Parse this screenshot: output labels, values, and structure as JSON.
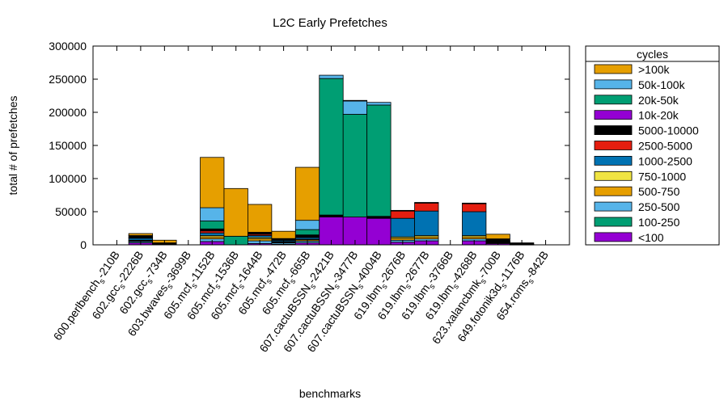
{
  "chart_data": {
    "type": "bar",
    "stacked": true,
    "title": "L2C Early Prefetches",
    "xlabel": "benchmarks",
    "ylabel": "total # of prefetches",
    "ylim": [
      0,
      300000
    ],
    "yticks": [
      "0",
      "50000",
      "100000",
      "150000",
      "200000",
      "250000",
      "300000"
    ],
    "grid": false,
    "legend_position": "right",
    "legend_title": "cycles",
    "categories": [
      "600.perlbench_s-210B",
      "602.gcc_s-2226B",
      "602.gcc_s-734B",
      "603.bwaves_s-3699B",
      "605.mcf_s-1152B",
      "605.mcf_s-1536B",
      "605.mcf_s-1644B",
      "605.mcf_s-472B",
      "605.mcf_s-665B",
      "607.cactuBSSN_s-2421B",
      "607.cactuBSSN_s-3477B",
      "607.cactuBSSN_s-4004B",
      "619.lbm_s-2676B",
      "619.lbm_s-2677B",
      "619.lbm_s-3766B",
      "619.lbm_s-4268B",
      "623.xalancbmk_s-700B",
      "649.fotonik3d_s-1176B",
      "654.roms_s-842B"
    ],
    "category_labels": [
      {
        "main": "600.perlbench",
        "sub": "s",
        "tail": "-210B"
      },
      {
        "main": "602.gcc",
        "sub": "s",
        "tail": "-2226B"
      },
      {
        "main": "602.gcc",
        "sub": "s",
        "tail": "-734B"
      },
      {
        "main": "603.bwaves",
        "sub": "s",
        "tail": "-3699B"
      },
      {
        "main": "605.mcf",
        "sub": "s",
        "tail": "-1152B"
      },
      {
        "main": "605.mcf",
        "sub": "s",
        "tail": "-1536B"
      },
      {
        "main": "605.mcf",
        "sub": "s",
        "tail": "-1644B"
      },
      {
        "main": "605.mcf",
        "sub": "s",
        "tail": "-472B"
      },
      {
        "main": "605.mcf",
        "sub": "s",
        "tail": "-665B"
      },
      {
        "main": "607.cactuBSSN",
        "sub": "s",
        "tail": "-2421B"
      },
      {
        "main": "607.cactuBSSN",
        "sub": "s",
        "tail": "-3477B"
      },
      {
        "main": "607.cactuBSSN",
        "sub": "s",
        "tail": "-4004B"
      },
      {
        "main": "619.lbm",
        "sub": "s",
        "tail": "-2676B"
      },
      {
        "main": "619.lbm",
        "sub": "s",
        "tail": "-2677B"
      },
      {
        "main": "619.lbm",
        "sub": "s",
        "tail": "-3766B"
      },
      {
        "main": "619.lbm",
        "sub": "s",
        "tail": "-4268B"
      },
      {
        "main": "623.xalancbmk",
        "sub": "s",
        "tail": "-700B"
      },
      {
        "main": "649.fotonik3d",
        "sub": "s",
        "tail": "-1176B"
      },
      {
        "main": "654.roms",
        "sub": "s",
        "tail": "-842B"
      }
    ],
    "series": [
      {
        "name": "<100",
        "color": "#9400d3",
        "values": [
          0,
          3000,
          1000,
          0,
          5000,
          0,
          2000,
          1000,
          3000,
          42000,
          42000,
          40000,
          4000,
          6000,
          0,
          6000,
          2000,
          500,
          0
        ]
      },
      {
        "name": "100-250",
        "color": "#009e73",
        "values": [
          0,
          0,
          0,
          0,
          0,
          13000,
          0,
          0,
          0,
          0,
          0,
          0,
          0,
          0,
          0,
          0,
          0,
          0,
          0
        ]
      },
      {
        "name": "250-500",
        "color": "#56b4e9",
        "values": [
          0,
          2000,
          500,
          0,
          4000,
          0,
          4000,
          2000,
          2500,
          0,
          0,
          0,
          3000,
          3000,
          0,
          3000,
          1000,
          500,
          0
        ]
      },
      {
        "name": "500-750",
        "color": "#e69f00",
        "values": [
          0,
          1000,
          500,
          0,
          3000,
          0,
          3000,
          1000,
          2000,
          0,
          0,
          0,
          3000,
          3000,
          0,
          3000,
          1000,
          0,
          0
        ]
      },
      {
        "name": "750-1000",
        "color": "#f0e442",
        "values": [
          0,
          1000,
          0,
          0,
          2000,
          0,
          2000,
          1000,
          1000,
          0,
          0,
          0,
          2000,
          2000,
          0,
          2000,
          500,
          0,
          0
        ]
      },
      {
        "name": "1000-2500",
        "color": "#0072b2",
        "values": [
          0,
          3000,
          0,
          0,
          4000,
          0,
          3000,
          2000,
          2500,
          0,
          0,
          0,
          3000,
          3000,
          0,
          3000,
          1000,
          0,
          0
        ]
      },
      {
        "name": "2500-5000",
        "color": "#e51e10",
        "values": [
          0,
          1000,
          0,
          0,
          3000,
          0,
          2000,
          500,
          1000,
          0,
          0,
          0,
          1000,
          1000,
          0,
          1000,
          500,
          0,
          0
        ]
      },
      {
        "name": "5000-10000",
        "color": "#000000",
        "values": [
          0,
          3000,
          1000,
          0,
          3000,
          0,
          3000,
          2000,
          3000,
          3000,
          0,
          3000,
          1000,
          1000,
          0,
          1000,
          3000,
          2000,
          0
        ]
      },
      {
        "name": "10k-20k",
        "color": "#9400d3",
        "values": [
          0,
          0,
          0,
          0,
          0,
          0,
          0,
          0,
          0,
          0,
          0,
          0,
          0,
          0,
          0,
          0,
          0,
          0,
          0
        ]
      },
      {
        "name": "20k-50k",
        "color": "#009e73",
        "values": [
          0,
          0,
          0,
          0,
          12000,
          0,
          0,
          0,
          8000,
          206000,
          155000,
          168000,
          0,
          0,
          0,
          0,
          0,
          0,
          0
        ]
      },
      {
        "name": "50k-100k",
        "color": "#56b4e9",
        "values": [
          0,
          0,
          0,
          0,
          20000,
          0,
          0,
          0,
          14000,
          5000,
          20000,
          4000,
          0,
          0,
          0,
          0,
          0,
          0,
          0
        ]
      },
      {
        "name": ">100k",
        "color": "#e69f00",
        "values": [
          0,
          3000,
          4000,
          0,
          76000,
          72000,
          42000,
          11000,
          80000,
          0,
          1000,
          0,
          0,
          0,
          0,
          0,
          7000,
          0,
          0
        ]
      }
    ],
    "stack_overrides": {
      "note_idx": [
        12,
        13,
        15
      ],
      "blue_2500": [
        28000,
        37000,
        36000
      ],
      "red_top": [
        11000,
        12000,
        12000
      ]
    }
  }
}
